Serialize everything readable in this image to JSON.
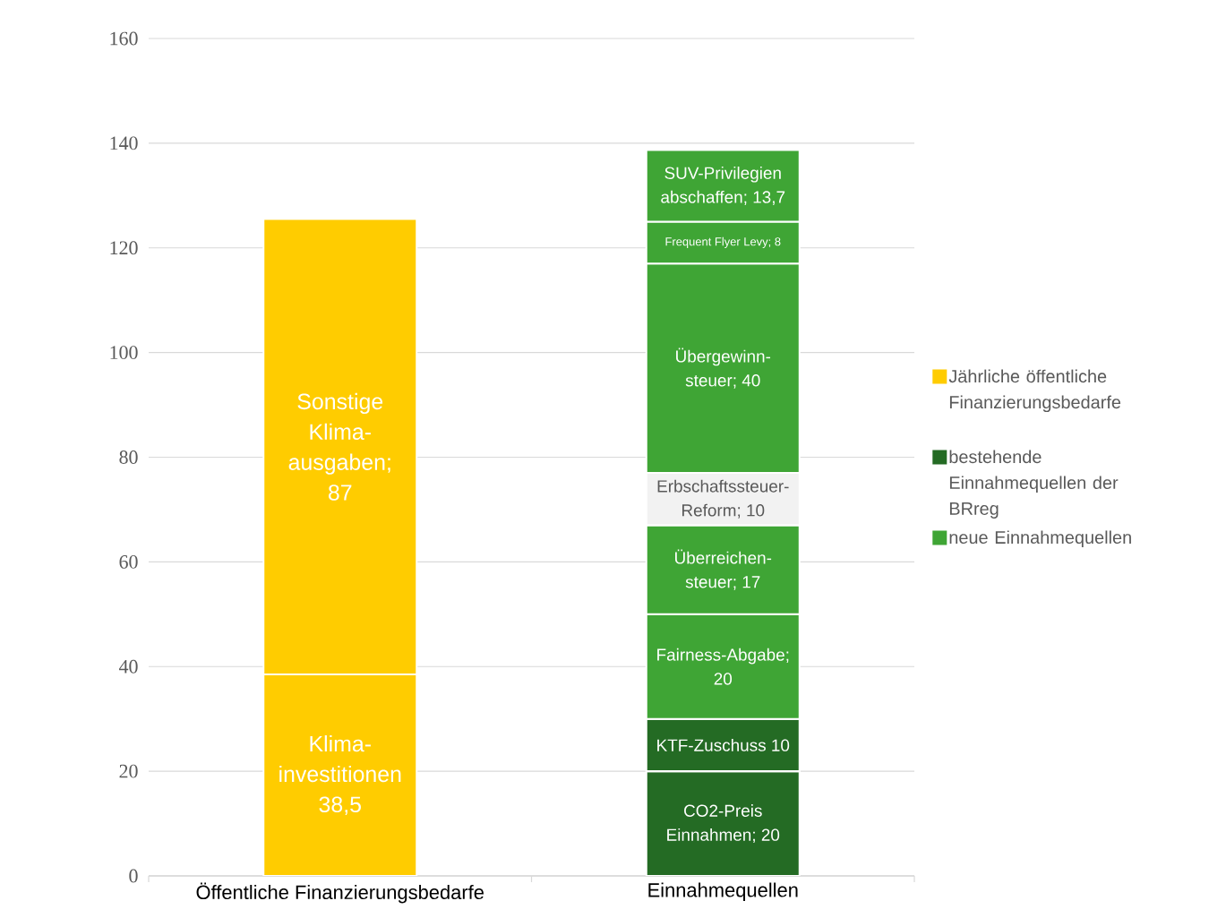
{
  "chart_data": {
    "type": "bar",
    "stacked": true,
    "categories": [
      "Öffentliche Finanzierungsbedarfe",
      "Einnahmequellen"
    ],
    "series": [
      {
        "name": "Jährliche öffentliche Finanzierungsbedarfe",
        "color": "#ffcc00",
        "values": [
          38.5,
          null
        ],
        "value_labels": [
          "Klima-investitionen 38,5",
          null
        ]
      },
      {
        "color": "#ffcc00",
        "values": [
          87,
          null
        ],
        "value_labels": [
          "Sonstige Klima-ausgaben; 87",
          null
        ]
      },
      {
        "name": "bestehende Einnahmequellen der BRreg",
        "color": "#246b24",
        "values": [
          null,
          20
        ],
        "value_labels": [
          null,
          "CO2-Preis Einnahmen; 20"
        ]
      },
      {
        "color": "#246b24",
        "values": [
          null,
          10
        ],
        "value_labels": [
          null,
          "KTF-Zuschuss 10"
        ]
      },
      {
        "name": "neue Einnahmequellen",
        "color": "#3fa535",
        "values": [
          null,
          20
        ],
        "value_labels": [
          null,
          "Fairness-Abgabe; 20"
        ]
      },
      {
        "color": "#3fa535",
        "values": [
          null,
          17
        ],
        "value_labels": [
          null,
          "Überreichen-steuer; 17"
        ]
      },
      {
        "color": "#f2f2f2",
        "values": [
          null,
          10
        ],
        "value_labels": [
          null,
          "Erbschaftssteuer-Reform; 10"
        ]
      },
      {
        "color": "#3fa535",
        "values": [
          null,
          40
        ],
        "value_labels": [
          null,
          "Übergewinn-steuer; 40"
        ]
      },
      {
        "color": "#3fa535",
        "values": [
          null,
          8
        ],
        "value_labels": [
          null,
          "Frequent Flyer Levy; 8"
        ]
      },
      {
        "color": "#3fa535",
        "values": [
          null,
          13.7
        ],
        "value_labels": [
          null,
          "SUV-Privilegien abschaffen; 13,7"
        ]
      }
    ],
    "ylim": [
      0,
      160
    ],
    "yticks": [
      0,
      20,
      40,
      60,
      80,
      100,
      120,
      140,
      160
    ],
    "grid": "y",
    "legend": "right"
  }
}
